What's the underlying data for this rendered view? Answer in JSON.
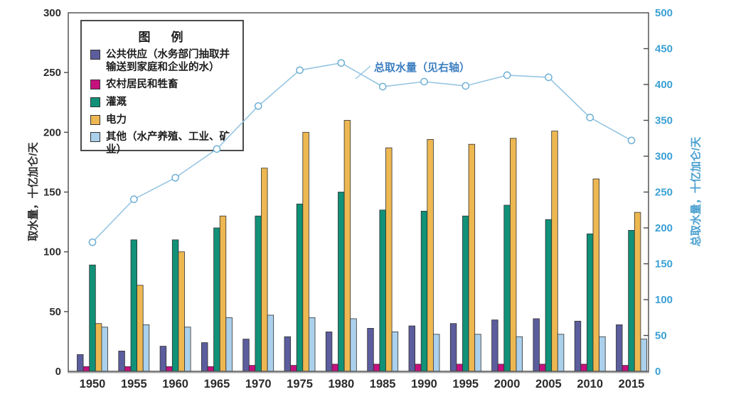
{
  "chart_data": {
    "type": "bar",
    "title": "",
    "categories": [
      "1950",
      "1955",
      "1960",
      "1965",
      "1970",
      "1975",
      "1980",
      "1985",
      "1990",
      "1995",
      "2000",
      "2005",
      "2010",
      "2015"
    ],
    "series": [
      {
        "name": "公共供应（水务部门抽取并输送到家庭和企业的水）",
        "color": "#5c5d9d",
        "values": [
          14,
          17,
          21,
          24,
          27,
          29,
          33,
          36,
          38,
          40,
          43,
          44,
          42,
          39
        ]
      },
      {
        "name": "农村居民和牲畜",
        "color": "#c6107e",
        "values": [
          4,
          4,
          4,
          4,
          5,
          5,
          6,
          6,
          6,
          6,
          6,
          6,
          6,
          5
        ]
      },
      {
        "name": "灌溉",
        "color": "#109178",
        "values": [
          89,
          110,
          110,
          120,
          130,
          140,
          150,
          135,
          134,
          130,
          139,
          127,
          115,
          118
        ]
      },
      {
        "name": "电力",
        "color": "#edb751",
        "values": [
          40,
          72,
          100,
          130,
          170,
          200,
          210,
          187,
          194,
          190,
          195,
          201,
          161,
          133
        ]
      },
      {
        "name": "其他（水产养殖、工业、矿业）",
        "color": "#aad0ec",
        "values": [
          37,
          39,
          37,
          45,
          47,
          45,
          44,
          33,
          31,
          31,
          29,
          31,
          29,
          27
        ]
      }
    ],
    "line_series": {
      "name": "总取水量",
      "color": "#96c5e2",
      "marker_stroke": "#6fb0d4",
      "axis": "right",
      "values": [
        180,
        240,
        270,
        310,
        370,
        420,
        430,
        397,
        404,
        398,
        413,
        410,
        354,
        322
      ]
    },
    "left_axis": {
      "label": "取水量，十亿加仑/天",
      "min": 0,
      "max": 300,
      "ticks": [
        0,
        50,
        100,
        150,
        200,
        250,
        300
      ],
      "color": "#2b2b2b"
    },
    "right_axis": {
      "label": "总取水量，十亿加仑/天",
      "min": 0,
      "max": 500,
      "ticks": [
        0,
        50,
        100,
        150,
        200,
        250,
        300,
        350,
        400,
        450,
        500
      ],
      "color": "#3ba0d4"
    },
    "legend": {
      "title": "图　例"
    },
    "annotation": {
      "text": "总取水量（见右轴）",
      "color": "#3d7fc1"
    },
    "grid": false,
    "legend_position": "top-left-inside",
    "bar_outline": "#303030"
  }
}
